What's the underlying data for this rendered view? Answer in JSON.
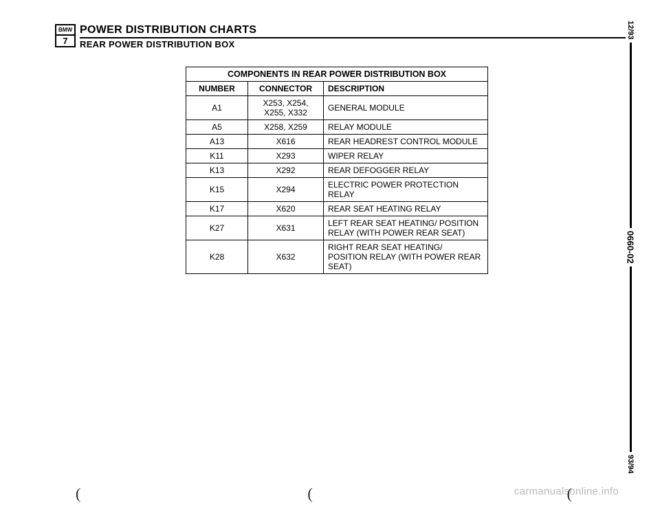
{
  "logo": {
    "top": "BMW",
    "bot": "7"
  },
  "header": {
    "title1": "POWER DISTRIBUTION CHARTS",
    "title2": "REAR POWER DISTRIBUTION BOX"
  },
  "table": {
    "title": "COMPONENTS IN REAR POWER DISTRIBUTION BOX",
    "columns": [
      "NUMBER",
      "CONNECTOR",
      "DESCRIPTION"
    ],
    "rows": [
      {
        "number": "A1",
        "connector": "X253, X254, X255, X332",
        "description": "GENERAL MODULE"
      },
      {
        "number": "A5",
        "connector": "X258, X259",
        "description": "RELAY MODULE"
      },
      {
        "number": "A13",
        "connector": "X616",
        "description": "REAR HEADREST CONTROL MODULE"
      },
      {
        "number": "K11",
        "connector": "X293",
        "description": "WIPER RELAY"
      },
      {
        "number": "K13",
        "connector": "X292",
        "description": "REAR DEFOGGER RELAY"
      },
      {
        "number": "K15",
        "connector": "X294",
        "description": "ELECTRIC POWER PROTECTION RELAY"
      },
      {
        "number": "K17",
        "connector": "X620",
        "description": "REAR SEAT HEATING RELAY"
      },
      {
        "number": "K27",
        "connector": "X631",
        "description": "LEFT REAR SEAT HEATING/ POSITION RELAY (WITH POWER REAR SEAT)"
      },
      {
        "number": "K28",
        "connector": "X632",
        "description": "RIGHT REAR SEAT HEATING/ POSITION RELAY (WITH POWER REAR SEAT)"
      }
    ]
  },
  "side": {
    "top": "12/93",
    "mid": "0660-02",
    "bot": "93/94"
  },
  "watermark": "carmanualsonline.info",
  "parens": [
    "(",
    "(",
    "("
  ]
}
